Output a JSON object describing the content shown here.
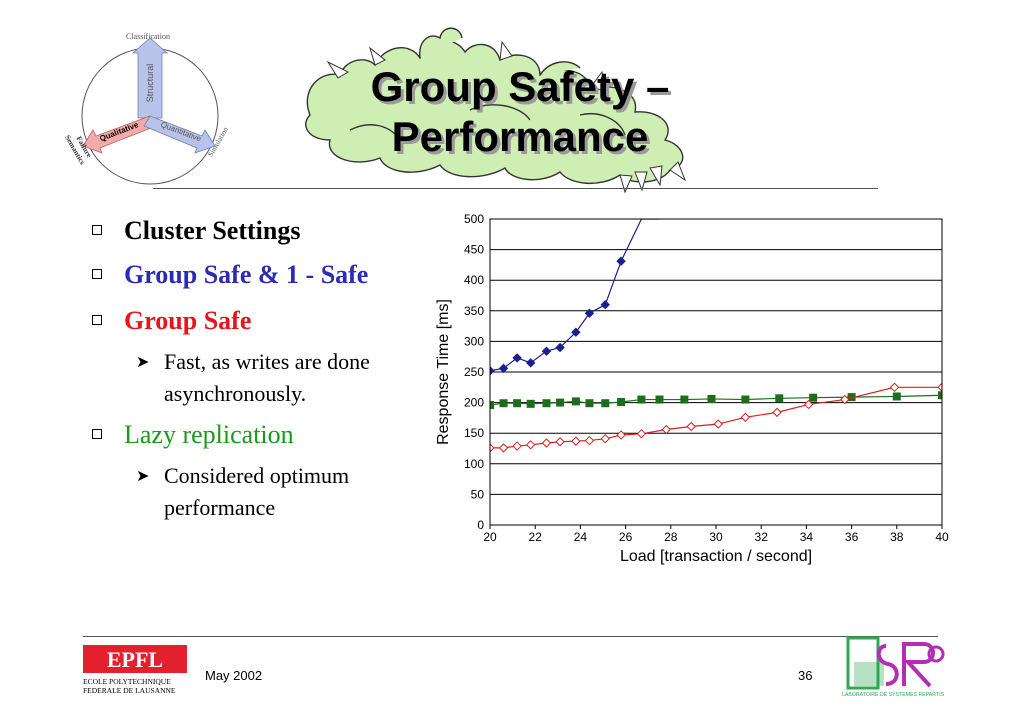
{
  "slide": {
    "title_line1": "Group Safety –",
    "title_line2": "Performance"
  },
  "diagram": {
    "top_label": "Classification",
    "arrow_up": "Structural",
    "arrow_left": "Qualitative",
    "arrow_right": "Quantitative",
    "left_label_line1": "Failure",
    "left_label_line2": "Semantics",
    "right_label": "Simulation"
  },
  "bullets": [
    {
      "text": "Cluster Settings",
      "color": "#000000",
      "bold": true
    },
    {
      "text": "Group Safe & 1 - Safe",
      "color": "#2b2bb5",
      "bold": true
    },
    {
      "text": "Group Safe",
      "color": "#e8141a",
      "bold": true,
      "sub": [
        "Fast, as writes are done",
        "asynchronously."
      ]
    },
    {
      "text": "Lazy replication",
      "color": "#1a9a1a",
      "bold": false,
      "sub": [
        "Considered optimum",
        "performance"
      ]
    }
  ],
  "chart_data": {
    "type": "line",
    "xlabel": "Load [transaction / second]",
    "ylabel": "Response Time [ms]",
    "xlim": [
      20,
      40
    ],
    "ylim": [
      0,
      500
    ],
    "xticks": [
      20,
      22,
      24,
      26,
      28,
      30,
      32,
      34,
      36,
      38,
      40
    ],
    "yticks": [
      0,
      50,
      100,
      150,
      200,
      250,
      300,
      350,
      400,
      450,
      500
    ],
    "grid": "horizontal",
    "series": [
      {
        "color": "#1c1f8f",
        "marker": "diamond-filled",
        "x": [
          20,
          20.6,
          21.2,
          21.8,
          22.5,
          23.1,
          23.8,
          24.4,
          25.1,
          25.8,
          26.7,
          27.5
        ],
        "y": [
          252,
          256,
          273,
          265,
          284,
          290,
          315,
          346,
          360,
          431,
          500,
          500
        ],
        "marked": [
          true,
          true,
          true,
          true,
          true,
          true,
          true,
          true,
          true,
          true,
          false,
          false
        ]
      },
      {
        "color": "#1d6d1d",
        "marker": "square-filled",
        "x": [
          20,
          20.6,
          21.2,
          21.8,
          22.5,
          23.1,
          23.8,
          24.4,
          25.1,
          25.8,
          26.7,
          27.5,
          28.6,
          29.8,
          31.3,
          32.8,
          34.3,
          36,
          38,
          40
        ],
        "y": [
          196,
          199,
          199,
          198,
          199,
          200,
          202,
          199,
          199,
          201,
          205,
          205,
          205,
          206,
          205,
          207,
          208,
          209,
          210,
          212
        ]
      },
      {
        "color": "#d62020",
        "marker": "diamond-open",
        "x": [
          20,
          20.6,
          21.2,
          21.8,
          22.5,
          23.1,
          23.8,
          24.4,
          25.1,
          25.8,
          26.7,
          27.8,
          28.9,
          30.1,
          31.3,
          32.7,
          34.1,
          35.7,
          37.9,
          40
        ],
        "y": [
          126,
          126,
          129,
          131,
          134,
          136,
          137,
          138,
          141,
          147,
          149,
          156,
          161,
          165,
          176,
          184,
          197,
          205,
          225,
          225
        ]
      }
    ]
  },
  "footer": {
    "date": "May  2002",
    "page": "36",
    "epfl_line1": "ECOLE POLYTECHNIQUE",
    "epfl_line2": "FEDERALE DE LAUSANNE",
    "epfl_mark": "EPFL",
    "lsr_caption": "LABORATOIRE DE SYSTEMES REPARTIS"
  },
  "colors": {
    "structural_arrow": "#b9c3ea",
    "qualitative_arrow": "#f4aaaa",
    "quantitative_arrow": "#b9c3ea",
    "dragon_fill": "#cfeeb3",
    "epfl_red": "#e4202e",
    "lsr_green": "#2fa84f",
    "lsr_magenta": "#b22fb4"
  }
}
